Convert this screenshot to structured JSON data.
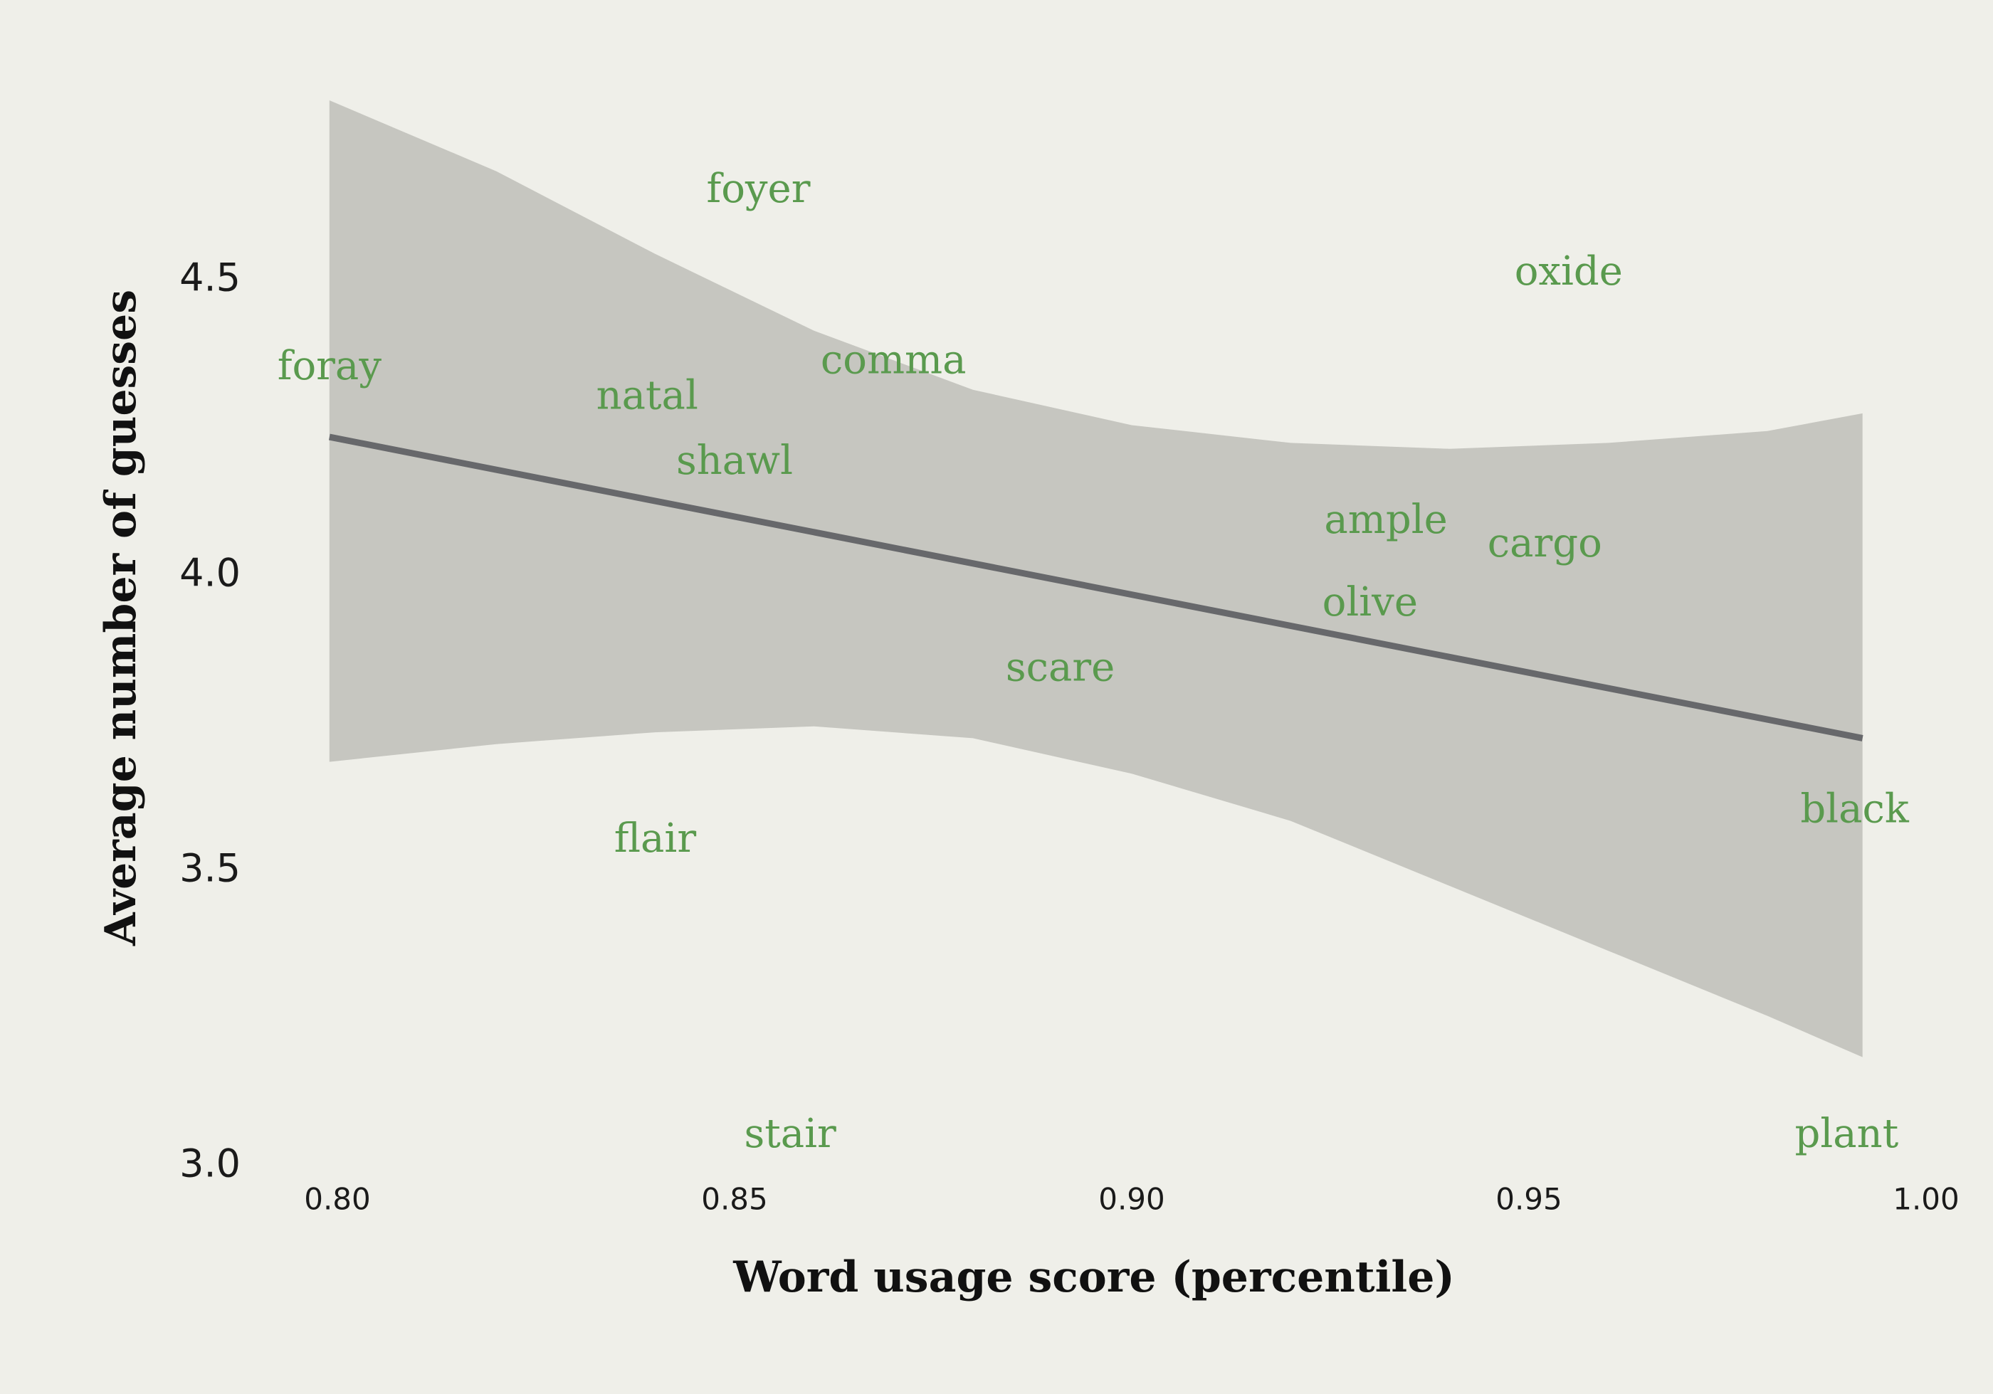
{
  "chart_data": {
    "type": "scatter",
    "title": "",
    "xlabel": "Word usage score (percentile)",
    "ylabel": "Average number of guesses",
    "xlim": [
      0.795,
      1.0
    ],
    "ylim": [
      3.0,
      4.75
    ],
    "x_ticks": [
      0.8,
      0.85,
      0.9,
      0.95,
      1.0
    ],
    "x_tick_labels": [
      "0.80",
      "0.85",
      "0.90",
      "0.95",
      "1.00"
    ],
    "y_ticks": [
      3.0,
      3.5,
      4.0,
      4.5
    ],
    "y_tick_labels": [
      "3.0",
      "3.5",
      "4.0",
      "4.5"
    ],
    "grid": false,
    "legend": "none",
    "points": [
      {
        "label": "foray",
        "x": 0.799,
        "y": 4.35
      },
      {
        "label": "foyer",
        "x": 0.853,
        "y": 4.65
      },
      {
        "label": "natal",
        "x": 0.839,
        "y": 4.3
      },
      {
        "label": "comma",
        "x": 0.87,
        "y": 4.36
      },
      {
        "label": "shawl",
        "x": 0.85,
        "y": 4.19
      },
      {
        "label": "oxide",
        "x": 0.955,
        "y": 4.51
      },
      {
        "label": "ample",
        "x": 0.932,
        "y": 4.09
      },
      {
        "label": "cargo",
        "x": 0.952,
        "y": 4.05
      },
      {
        "label": "olive",
        "x": 0.93,
        "y": 3.95
      },
      {
        "label": "scare",
        "x": 0.891,
        "y": 3.84
      },
      {
        "label": "black",
        "x": 0.991,
        "y": 3.6
      },
      {
        "label": "flair",
        "x": 0.84,
        "y": 3.55
      },
      {
        "label": "stair",
        "x": 0.857,
        "y": 3.05
      },
      {
        "label": "plant",
        "x": 0.99,
        "y": 3.05
      }
    ],
    "trend_line": {
      "x": [
        0.799,
        0.992
      ],
      "y": [
        4.23,
        3.72
      ]
    },
    "confidence_band": {
      "x": [
        0.799,
        0.82,
        0.84,
        0.86,
        0.88,
        0.9,
        0.92,
        0.94,
        0.96,
        0.98,
        0.992
      ],
      "upper": [
        4.8,
        4.68,
        4.54,
        4.41,
        4.31,
        4.25,
        4.22,
        4.21,
        4.22,
        4.24,
        4.27
      ],
      "lower": [
        3.68,
        3.71,
        3.73,
        3.74,
        3.72,
        3.66,
        3.58,
        3.47,
        3.36,
        3.25,
        3.18
      ]
    },
    "colors": {
      "background": "#efefe9",
      "band": "#c6c6c0",
      "trend_line": "#67686b",
      "labels": "#5a9a4e"
    }
  }
}
